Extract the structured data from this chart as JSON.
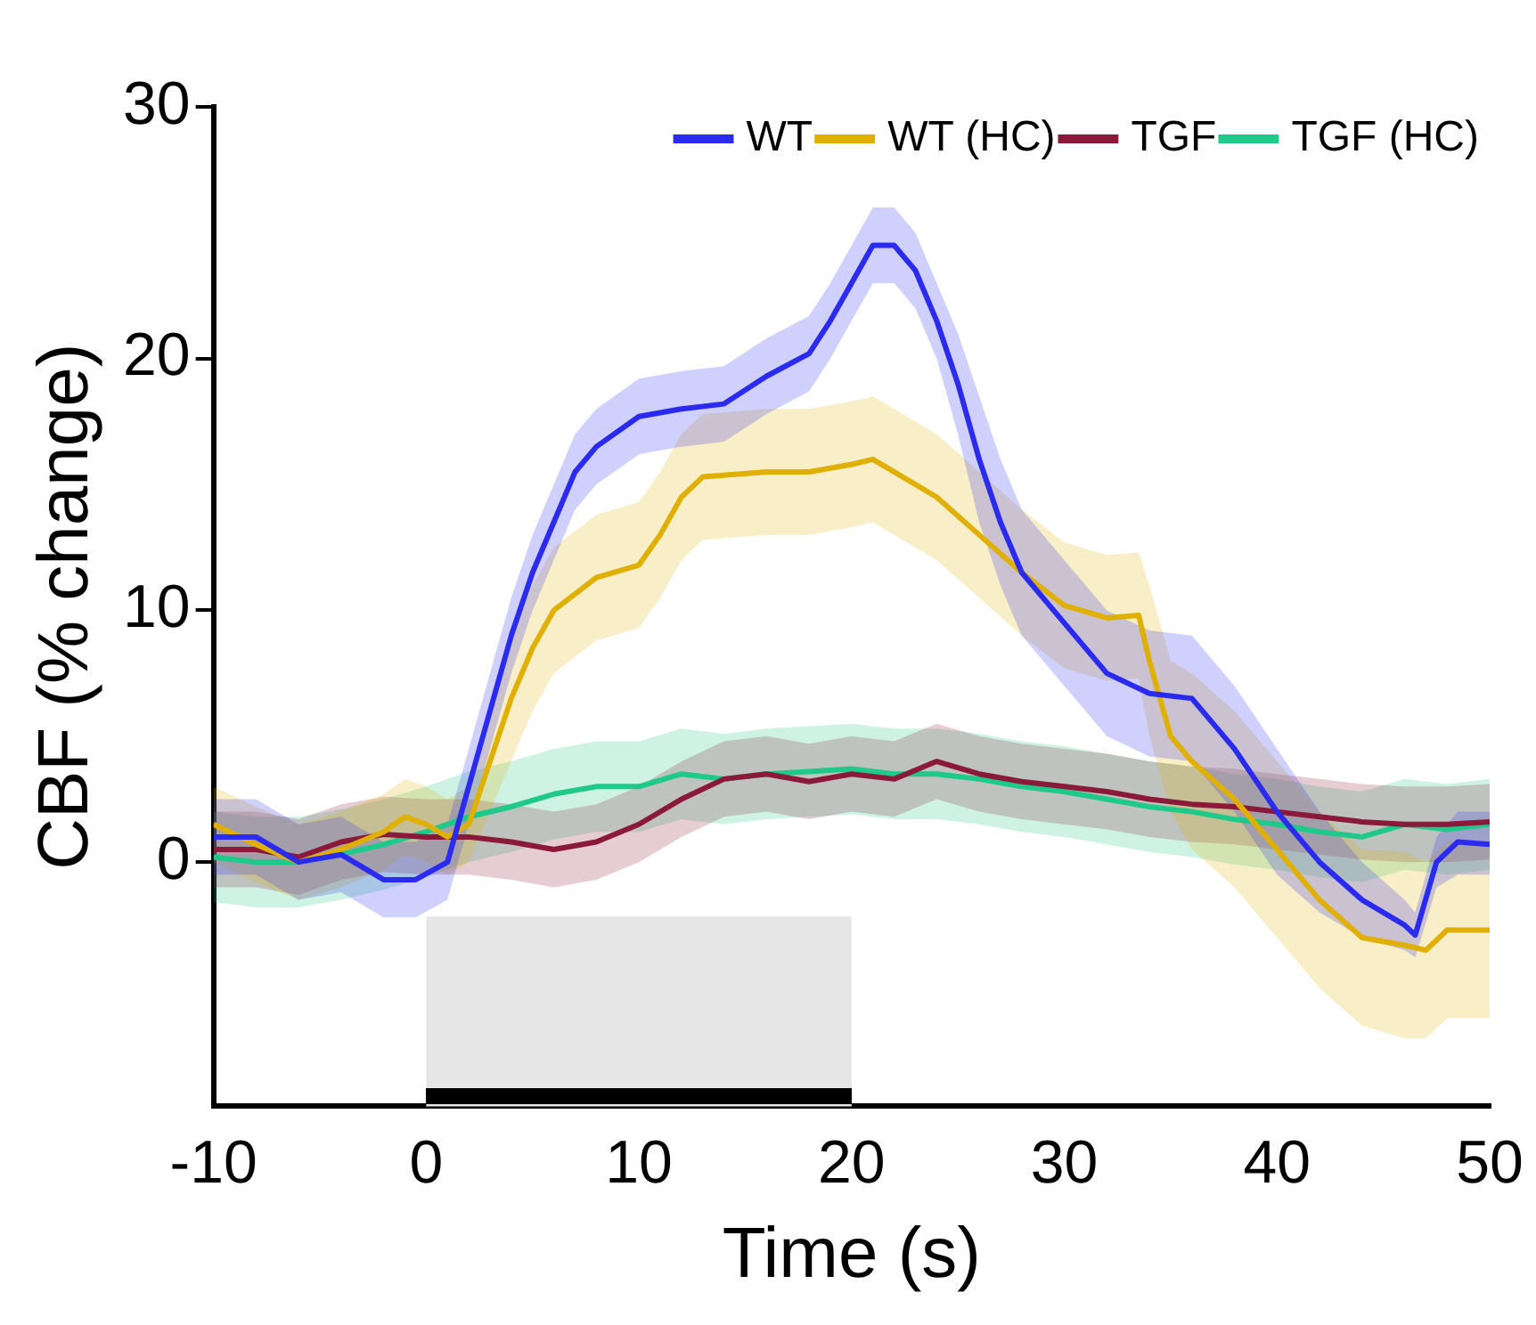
{
  "chart_data": {
    "type": "line",
    "xlabel": "Time (s)",
    "ylabel": "CBF (% change)",
    "xlim": [
      -10,
      50
    ],
    "xticks": [
      -10,
      0,
      10,
      20,
      30,
      40,
      50
    ],
    "ylim": [
      -9.7,
      30
    ],
    "yticks": [
      0,
      10,
      20,
      30
    ],
    "grid": false,
    "legend": "top right",
    "marker": "none",
    "line_style": "solid",
    "bands": [
      {
        "axis": "x",
        "from": 0,
        "to": 20,
        "color": "#e6e6e6"
      }
    ],
    "series": [
      {
        "name": "WT",
        "color": "#2b2bf0",
        "x": [
          -10,
          -8,
          -6,
          -4,
          -2,
          -0.5,
          1,
          2,
          3,
          4,
          5,
          6,
          7,
          8,
          10,
          12,
          14,
          16,
          18,
          19,
          20,
          21,
          22,
          23,
          24,
          25,
          26,
          27,
          28,
          30,
          32,
          34,
          36,
          37,
          38,
          40,
          42,
          44,
          46,
          46.5,
          47.5,
          48.5,
          50
        ],
        "values": [
          1,
          1,
          0,
          0.3,
          -0.7,
          -0.7,
          0,
          3,
          6,
          9,
          11.5,
          13.5,
          15.5,
          16.5,
          17.7,
          18,
          18.2,
          19.3,
          20.2,
          21.5,
          23,
          24.5,
          24.5,
          23.5,
          21.5,
          19,
          16,
          13.5,
          11.5,
          9.5,
          7.5,
          6.7,
          6.5,
          5.5,
          4.5,
          2,
          0,
          -1.5,
          -2.5,
          -2.9,
          0,
          0.8,
          0.7
        ],
        "lower": [
          -0.5,
          -0.5,
          -1.5,
          -1.2,
          -2.2,
          -2.2,
          -1.5,
          1.5,
          4.5,
          7.5,
          10,
          12,
          14,
          15,
          16.2,
          16.5,
          16.7,
          17.8,
          18.7,
          20,
          21.5,
          23,
          23,
          22,
          20,
          17,
          13.5,
          11,
          9,
          7,
          5,
          4.2,
          4,
          3,
          2,
          -0.5,
          -2,
          -3,
          -3.5,
          -3.8,
          -1,
          -0.5,
          -0.5
        ],
        "upper": [
          2.5,
          2.5,
          1.5,
          1.8,
          0.8,
          0.8,
          1.5,
          4.5,
          7.5,
          10.5,
          13,
          15,
          17,
          18,
          19.2,
          19.5,
          19.7,
          20.8,
          21.7,
          23,
          24.5,
          26,
          26,
          25,
          23,
          21,
          18.5,
          16,
          14,
          12,
          10,
          9.2,
          9,
          8,
          7,
          4.5,
          2,
          0,
          -1.5,
          -2,
          1,
          2,
          2
        ]
      },
      {
        "name": "WT (HC)",
        "color": "#e0b000",
        "x": [
          -10,
          -8,
          -6,
          -4,
          -2,
          -1,
          0,
          1,
          2,
          3,
          4,
          5,
          6,
          8,
          10,
          11,
          12,
          13,
          16,
          18,
          20,
          21,
          22,
          24,
          26,
          28,
          30,
          32,
          33.5,
          34,
          35,
          36,
          38,
          40,
          42,
          44,
          46,
          47,
          48,
          50
        ],
        "values": [
          1.5,
          0.7,
          0,
          0.5,
          1.2,
          1.8,
          1.5,
          1,
          1.5,
          4,
          6.5,
          8.5,
          10,
          11.3,
          11.8,
          13,
          14.5,
          15.3,
          15.5,
          15.5,
          15.8,
          16,
          15.5,
          14.5,
          13,
          11.5,
          10.2,
          9.7,
          9.8,
          8,
          5,
          4,
          2.5,
          0.5,
          -1.5,
          -3,
          -3.3,
          -3.5,
          -2.7,
          -2.7
        ],
        "lower": [
          0,
          -0.8,
          -1.5,
          -1,
          -0.3,
          0.3,
          0,
          -0.5,
          0,
          2,
          4,
          6,
          7.5,
          8.8,
          9.3,
          10.5,
          12,
          12.8,
          13,
          13,
          13.3,
          13.5,
          13,
          12,
          10.5,
          9,
          7.7,
          7.2,
          7.3,
          5,
          2,
          0.5,
          -1,
          -3,
          -5,
          -6.5,
          -7,
          -7,
          -6.2,
          -6.2
        ],
        "upper": [
          3,
          2.2,
          1.5,
          2,
          2.7,
          3.3,
          3,
          2.5,
          3,
          6,
          9,
          11,
          12.5,
          13.8,
          14.3,
          15.5,
          17,
          17.8,
          18,
          18,
          18.3,
          18.5,
          18,
          17,
          15.5,
          14,
          12.7,
          12.2,
          12.3,
          11,
          8,
          7.5,
          6,
          4,
          2,
          0.5,
          0.4,
          0,
          0.8,
          0.8
        ]
      },
      {
        "name": "TGF",
        "color": "#8b1a3a",
        "x": [
          -10,
          -8,
          -6,
          -4,
          -2,
          0,
          2,
          4,
          6,
          8,
          10,
          12,
          14,
          16,
          18,
          20,
          22,
          24,
          26,
          28,
          30,
          32,
          34,
          36,
          38,
          40,
          42,
          44,
          46,
          48,
          50
        ],
        "values": [
          0.5,
          0.5,
          0.2,
          0.8,
          1.1,
          1,
          1,
          0.8,
          0.5,
          0.8,
          1.5,
          2.5,
          3.3,
          3.5,
          3.2,
          3.5,
          3.3,
          4,
          3.5,
          3.2,
          3,
          2.8,
          2.5,
          2.3,
          2.2,
          2,
          1.8,
          1.6,
          1.5,
          1.5,
          1.6
        ],
        "lower": [
          -1,
          -1,
          -1.3,
          -0.7,
          -0.4,
          -0.5,
          -0.5,
          -0.7,
          -1,
          -0.7,
          0,
          1,
          1.8,
          2,
          1.7,
          2,
          1.8,
          2.5,
          2,
          1.7,
          1.5,
          1.3,
          1,
          0.8,
          0.7,
          0.5,
          0.3,
          0.1,
          0,
          0,
          0.1
        ],
        "upper": [
          2,
          2,
          1.7,
          2.3,
          2.6,
          2.5,
          2.5,
          2.3,
          2,
          2.3,
          3,
          4,
          4.8,
          5,
          4.7,
          5,
          4.8,
          5.5,
          5,
          4.7,
          4.5,
          4.3,
          4,
          3.8,
          3.7,
          3.5,
          3.3,
          3.1,
          3,
          3,
          3.1
        ]
      },
      {
        "name": "TGF (HC)",
        "color": "#1ec98a",
        "x": [
          -10,
          -8,
          -6,
          -4,
          -2,
          0,
          2,
          4,
          6,
          8,
          10,
          12,
          14,
          16,
          18,
          20,
          22,
          24,
          26,
          28,
          30,
          32,
          34,
          36,
          38,
          40,
          42,
          44,
          46,
          48,
          50
        ],
        "values": [
          0.2,
          0,
          0,
          0.3,
          0.7,
          1.2,
          1.8,
          2.2,
          2.7,
          3,
          3,
          3.5,
          3.3,
          3.5,
          3.6,
          3.7,
          3.5,
          3.5,
          3.3,
          3,
          2.8,
          2.5,
          2.2,
          2,
          1.7,
          1.5,
          1.2,
          1,
          1.5,
          1.3,
          1.5
        ],
        "lower": [
          -1.6,
          -1.8,
          -1.8,
          -1.5,
          -1.1,
          -0.6,
          0,
          0.4,
          0.9,
          1.2,
          1.2,
          1.7,
          1.5,
          1.7,
          1.8,
          1.9,
          1.7,
          1.7,
          1.5,
          1.2,
          1,
          0.7,
          0.4,
          0.2,
          -0.1,
          -0.3,
          -0.6,
          -0.8,
          -0.3,
          -0.5,
          -0.3
        ],
        "upper": [
          2,
          1.8,
          1.8,
          2.1,
          2.5,
          3,
          3.6,
          4,
          4.5,
          4.8,
          4.8,
          5.3,
          5.1,
          5.3,
          5.4,
          5.5,
          5.3,
          5.3,
          5.1,
          4.8,
          4.6,
          4.3,
          4,
          3.8,
          3.5,
          3.3,
          3,
          2.8,
          3.3,
          3.1,
          3.3
        ]
      }
    ]
  }
}
